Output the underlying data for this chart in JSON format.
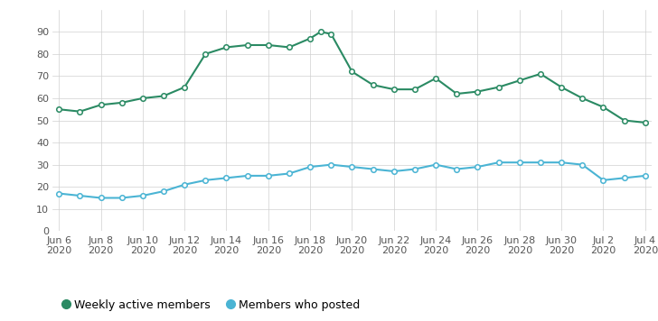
{
  "x_tick_labels": [
    "Jun 6\n2020",
    "Jun 8\n2020",
    "Jun 10\n2020",
    "Jun 12\n2020",
    "Jun 14\n2020",
    "Jun 16\n2020",
    "Jun 18\n2020",
    "Jun 20\n2020",
    "Jun 22\n2020",
    "Jun 24\n2020",
    "Jun 26\n2020",
    "Jun 28\n2020",
    "Jun 30\n2020",
    "Jul 2\n2020",
    "Jul 4\n2020"
  ],
  "x_tick_positions": [
    0,
    2,
    4,
    6,
    8,
    10,
    12,
    14,
    16,
    18,
    20,
    22,
    24,
    26,
    28
  ],
  "active_x": [
    0,
    1,
    2,
    3,
    4,
    5,
    6,
    7,
    8,
    9,
    10,
    11,
    12,
    12.5,
    13,
    14,
    15,
    16,
    17,
    18,
    19,
    20,
    21,
    22,
    23,
    24,
    25,
    26,
    27,
    28
  ],
  "active_y": [
    55,
    54,
    57,
    58,
    60,
    61,
    65,
    80,
    83,
    84,
    84,
    83,
    87,
    90,
    89,
    72,
    66,
    64,
    64,
    69,
    62,
    63,
    65,
    68,
    71,
    65,
    60,
    56,
    50,
    49
  ],
  "posted_x": [
    0,
    1,
    2,
    3,
    4,
    5,
    6,
    7,
    8,
    9,
    10,
    11,
    12,
    13,
    14,
    15,
    16,
    17,
    18,
    19,
    20,
    21,
    22,
    23,
    24,
    25,
    26,
    27,
    28
  ],
  "posted_y": [
    17,
    16,
    15,
    15,
    16,
    18,
    21,
    23,
    24,
    25,
    25,
    26,
    29,
    30,
    29,
    28,
    27,
    28,
    30,
    28,
    29,
    31,
    31,
    31,
    31,
    30,
    23,
    24,
    25
  ],
  "active_color": "#2a8a63",
  "posted_color": "#4ab4d4",
  "marker_size": 4,
  "line_width": 1.5,
  "ylim": [
    0,
    100
  ],
  "xlim": [
    -0.3,
    28.3
  ],
  "yticks": [
    0,
    10,
    20,
    30,
    40,
    50,
    60,
    70,
    80,
    90
  ],
  "legend_active": "Weekly active members",
  "legend_posted": "Members who posted",
  "background_color": "#ffffff",
  "grid_color": "#d0d0d0",
  "font_size_tick": 8,
  "font_size_legend": 9
}
